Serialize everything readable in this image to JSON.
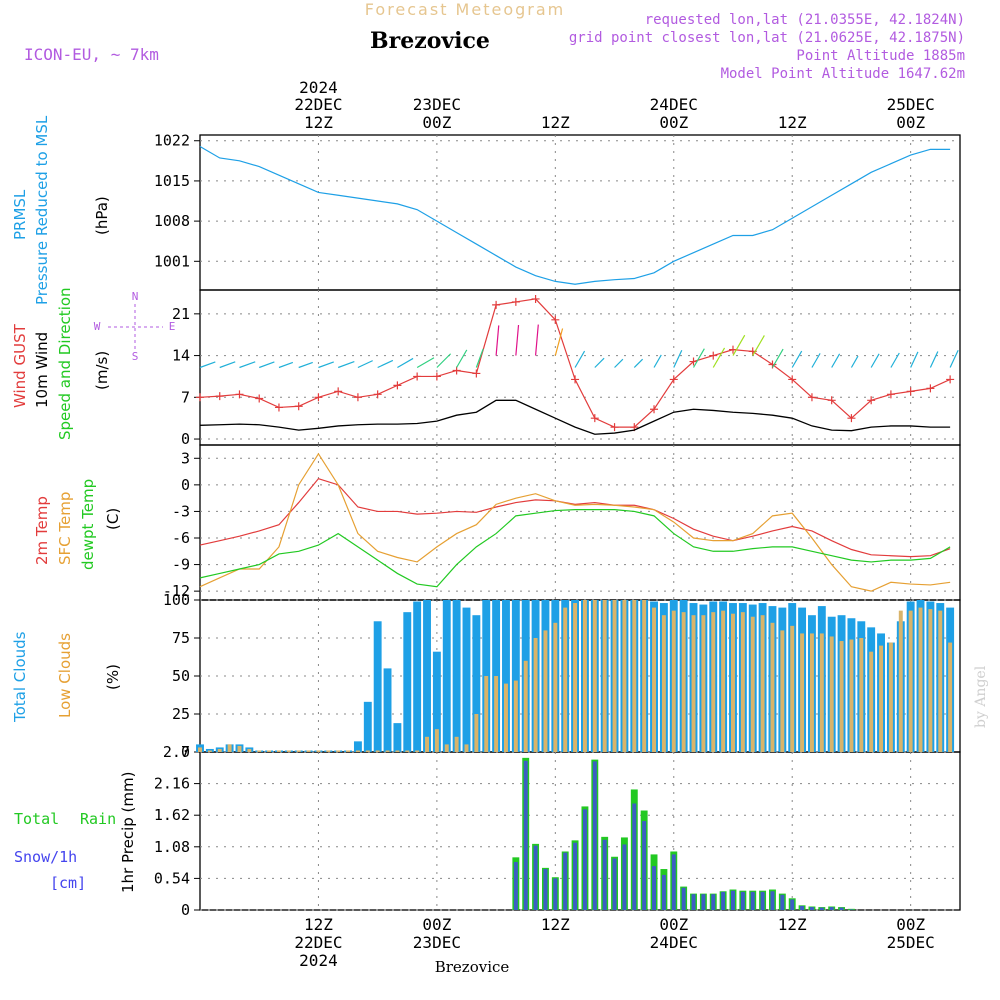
{
  "header": {
    "subtitle": "Forecast Meteogram",
    "station": "Brezovice",
    "model": "ICON-EU, ~ 7km",
    "requested": "requested lon,lat (21.0355E, 42.1824N)",
    "grid": "grid point closest lon,lat (21.0625E, 42.1875N)",
    "point_alt": "Point Altitude 1885m",
    "model_alt": "Model Point Altitude 1647.62m",
    "footer_station": "Brezovice",
    "watermark": "by Angel"
  },
  "time_axis": {
    "year": "2024",
    "labels": [
      {
        "hour": "12Z",
        "day": "22DEC",
        "h": 12
      },
      {
        "hour": "00Z",
        "day": "23DEC",
        "h": 24
      },
      {
        "hour": "12Z",
        "day": "",
        "h": 36
      },
      {
        "hour": "00Z",
        "day": "24DEC",
        "h": 48
      },
      {
        "hour": "12Z",
        "day": "",
        "h": 60
      },
      {
        "hour": "00Z",
        "day": "25DEC",
        "h": 72
      }
    ],
    "range_hours": [
      0,
      77
    ]
  },
  "colors": {
    "pressure": "#1ea0e6",
    "gust": "#e23c3c",
    "wind": "#000000",
    "temp2m": "#e23c3c",
    "sfc": "#e6a033",
    "dewpt": "#22c922",
    "total_clouds": "#1ea0e6",
    "low_clouds": "#d9b46a",
    "rain": "#22c922",
    "snow": "#4444ee",
    "meta": "#b25be0"
  },
  "panels": {
    "pressure": {
      "label1": "PRMSL",
      "label2": "Pressure Reduced to MSL",
      "unit": "(hPa)"
    },
    "wind": {
      "label1": "Wind GUST",
      "label2": "10m Wind",
      "label3": "Speed and Direction",
      "unit": "(m/s)",
      "compass_n": "N",
      "compass_s": "S",
      "compass_w": "W",
      "compass_e": "E"
    },
    "temp": {
      "label1": "2m Temp",
      "label2": "SFC Temp",
      "label3": "dewpt Temp",
      "unit": "(C)"
    },
    "clouds": {
      "label1": "Total Clouds",
      "label2": "Low Clouds",
      "unit": "(%)"
    },
    "precip": {
      "label1": "Total",
      "label1b": "Rain",
      "label2": "Snow/1h",
      "label3": "[cm]",
      "unit": "1hr Precip (mm)"
    }
  },
  "chart_data": [
    {
      "type": "line",
      "name": "PRMSL",
      "ylim": [
        996,
        1023
      ],
      "yticks": [
        "1022",
        "1015",
        "1008",
        "1001"
      ],
      "ytick_values": [
        1022,
        1015,
        1008,
        1001
      ],
      "x": [
        0,
        2,
        4,
        6,
        8,
        10,
        12,
        14,
        16,
        18,
        20,
        22,
        24,
        26,
        28,
        30,
        32,
        34,
        36,
        38,
        40,
        42,
        44,
        46,
        48,
        50,
        52,
        54,
        56,
        58,
        60,
        62,
        64,
        66,
        68,
        70,
        72,
        74,
        76
      ],
      "values": [
        1021,
        1019,
        1018.5,
        1017.5,
        1016,
        1014.5,
        1013,
        1012.5,
        1012,
        1011.5,
        1011,
        1010,
        1008,
        1006,
        1004,
        1002,
        1000,
        998.5,
        997.5,
        997,
        997.5,
        997.8,
        998,
        999,
        1001,
        1002.5,
        1004,
        1005.5,
        1005.5,
        1006.5,
        1008.5,
        1010.5,
        1012.5,
        1014.5,
        1016.5,
        1018,
        1019.5,
        1020.5,
        1020.5
      ]
    },
    {
      "type": "line",
      "name": "Wind GUST / 10m Wind",
      "ylim": [
        -1,
        25
      ],
      "yticks": [
        "21",
        "14",
        "7",
        "0"
      ],
      "ytick_values": [
        21,
        14,
        7,
        0
      ],
      "x": [
        0,
        2,
        4,
        6,
        8,
        10,
        12,
        14,
        16,
        18,
        20,
        22,
        24,
        26,
        28,
        30,
        32,
        34,
        36,
        38,
        40,
        42,
        44,
        46,
        48,
        50,
        52,
        54,
        56,
        58,
        60,
        62,
        64,
        66,
        68,
        70,
        72,
        74,
        76
      ],
      "series": [
        {
          "name": "Wind GUST",
          "values": [
            7,
            7.2,
            7.5,
            6.8,
            5.3,
            5.5,
            7,
            8,
            7,
            7.5,
            9,
            10.5,
            10.5,
            11.5,
            11,
            22.5,
            23,
            23.5,
            20,
            10,
            3.5,
            2,
            2,
            5,
            10,
            13,
            14,
            15,
            14.7,
            12.5,
            10,
            7,
            6.5,
            3.5,
            6.5,
            7.5,
            8,
            8.5,
            10
          ]
        },
        {
          "name": "10m Wind",
          "values": [
            2.3,
            2.4,
            2.5,
            2.4,
            2,
            1.5,
            1.8,
            2.2,
            2.4,
            2.5,
            2.5,
            2.6,
            3,
            4,
            4.5,
            6.5,
            6.5,
            5,
            3.5,
            2,
            0.8,
            1,
            1.5,
            3,
            4.5,
            5,
            4.8,
            4.5,
            4.3,
            4,
            3.5,
            2.2,
            1.5,
            1.4,
            2,
            2.2,
            2.2,
            2,
            2
          ]
        }
      ],
      "direction_deg": [
        70,
        70,
        70,
        70,
        70,
        70,
        70,
        70,
        65,
        65,
        60,
        60,
        45,
        30,
        20,
        5,
        5,
        5,
        15,
        30,
        45,
        45,
        45,
        30,
        25,
        30,
        30,
        30,
        30,
        30,
        30,
        30,
        30,
        30,
        30,
        30,
        25,
        25,
        25
      ]
    },
    {
      "type": "line",
      "name": "Temperatures",
      "ylim": [
        -13,
        4.5
      ],
      "yticks": [
        "3",
        "0",
        "-3",
        "-6",
        "-9",
        "-12"
      ],
      "ytick_values": [
        3,
        0,
        -3,
        -6,
        -9,
        -12
      ],
      "x": [
        0,
        2,
        4,
        6,
        8,
        10,
        12,
        14,
        16,
        18,
        20,
        22,
        24,
        26,
        28,
        30,
        32,
        34,
        36,
        38,
        40,
        42,
        44,
        46,
        48,
        50,
        52,
        54,
        56,
        58,
        60,
        62,
        64,
        66,
        68,
        70,
        72,
        74,
        76
      ],
      "series": [
        {
          "name": "2m Temp",
          "values": [
            -6.8,
            -6.3,
            -5.8,
            -5.2,
            -4.5,
            -2,
            0.7,
            0,
            -2.5,
            -3,
            -3,
            -3.3,
            -3.2,
            -3,
            -3.1,
            -2.5,
            -2,
            -1.7,
            -1.8,
            -2.2,
            -2,
            -2.3,
            -2.3,
            -2.8,
            -3.8,
            -5,
            -5.8,
            -6.3,
            -5.8,
            -5.2,
            -4.7,
            -5.2,
            -6.3,
            -7.3,
            -7.9,
            -8,
            -8.1,
            -8,
            -7.2
          ]
        },
        {
          "name": "SFC Temp",
          "values": [
            -11.5,
            -10.5,
            -9.5,
            -9.5,
            -7,
            0,
            3.5,
            0,
            -5.5,
            -7.5,
            -8.2,
            -8.7,
            -7,
            -5.5,
            -4.5,
            -2.2,
            -1.5,
            -1,
            -1.8,
            -2.3,
            -2.2,
            -2.3,
            -2.5,
            -2.8,
            -4.2,
            -6,
            -6.3,
            -6.3,
            -5.5,
            -3.5,
            -3.2,
            -6,
            -9,
            -11.5,
            -12,
            -11,
            -11.2,
            -11.3,
            -11
          ]
        },
        {
          "name": "dewpt Temp",
          "values": [
            -10.5,
            -10,
            -9.5,
            -9,
            -7.8,
            -7.5,
            -6.8,
            -5.5,
            -7,
            -8.5,
            -10,
            -11.2,
            -11.5,
            -9,
            -7,
            -5.5,
            -3.5,
            -3.2,
            -2.9,
            -2.8,
            -2.8,
            -2.8,
            -3,
            -3.5,
            -5.5,
            -7,
            -7.5,
            -7.5,
            -7.2,
            -7,
            -7,
            -7.5,
            -8,
            -8.5,
            -8.7,
            -8.5,
            -8.5,
            -8.3,
            -7
          ]
        }
      ]
    },
    {
      "type": "bar",
      "name": "Clouds",
      "ylim": [
        0,
        100
      ],
      "yticks": [
        "100",
        "75",
        "50",
        "25",
        "0"
      ],
      "ytick_values": [
        100,
        75,
        50,
        25,
        0
      ],
      "x": [
        0,
        1,
        2,
        3,
        4,
        5,
        6,
        7,
        8,
        9,
        10,
        11,
        12,
        13,
        14,
        15,
        16,
        17,
        18,
        19,
        20,
        21,
        22,
        23,
        24,
        25,
        26,
        27,
        28,
        29,
        30,
        31,
        32,
        33,
        34,
        35,
        36,
        37,
        38,
        39,
        40,
        41,
        42,
        43,
        44,
        45,
        46,
        47,
        48,
        49,
        50,
        51,
        52,
        53,
        54,
        55,
        56,
        57,
        58,
        59,
        60,
        61,
        62,
        63,
        64,
        65,
        66,
        67,
        68,
        69,
        70,
        71,
        72,
        73,
        74,
        75,
        76
      ],
      "series": [
        {
          "name": "Total Clouds",
          "values": [
            5,
            2,
            3,
            5,
            5,
            3,
            1,
            1,
            1,
            1,
            1,
            1,
            1,
            1,
            1,
            1,
            7,
            33,
            86,
            55,
            19,
            92,
            99,
            100,
            66,
            100,
            100,
            95,
            90,
            100,
            100,
            100,
            100,
            100,
            100,
            100,
            100,
            100,
            100,
            100,
            100,
            100,
            100,
            100,
            100,
            100,
            99,
            98,
            100,
            100,
            98,
            97,
            99,
            99,
            98,
            98,
            97,
            98,
            96,
            95,
            98,
            95,
            90,
            96,
            89,
            90,
            88,
            86,
            82,
            78,
            72,
            86,
            99,
            100,
            99,
            98,
            95
          ]
        },
        {
          "name": "Low Clouds",
          "values": [
            3,
            1,
            2,
            5,
            4,
            2,
            1,
            1,
            1,
            1,
            1,
            1,
            1,
            1,
            1,
            1,
            1,
            1,
            1,
            1,
            1,
            1,
            1,
            10,
            15,
            5,
            10,
            5,
            25,
            50,
            50,
            45,
            47,
            60,
            75,
            80,
            85,
            95,
            98,
            100,
            100,
            100,
            100,
            100,
            100,
            100,
            95,
            90,
            93,
            92,
            90,
            90,
            92,
            93,
            91,
            92,
            89,
            90,
            85,
            80,
            83,
            78,
            78,
            78,
            76,
            73,
            74,
            75,
            66,
            70,
            72,
            93,
            93,
            95,
            94,
            93,
            72
          ]
        }
      ]
    },
    {
      "type": "bar",
      "name": "1hr Precip",
      "ylim": [
        0,
        2.7
      ],
      "yticks": [
        "2.7",
        "2.16",
        "1.62",
        "1.08",
        "0.54",
        "0"
      ],
      "ytick_values": [
        2.7,
        2.16,
        1.62,
        1.08,
        0.54,
        0
      ],
      "x": [
        32,
        33,
        34,
        35,
        36,
        37,
        38,
        39,
        40,
        41,
        42,
        43,
        44,
        45,
        46,
        47,
        48,
        49,
        50,
        51,
        52,
        53,
        54,
        55,
        56,
        57,
        58,
        59,
        60,
        61,
        62,
        63,
        64,
        65,
        66
      ],
      "series": [
        {
          "name": "Total Rain",
          "values": [
            0.9,
            2.6,
            1.13,
            0.72,
            0.56,
            1.0,
            1.19,
            1.77,
            2.57,
            1.25,
            0.91,
            1.24,
            2.06,
            1.7,
            0.95,
            0.7,
            1.0,
            0.4,
            0.28,
            0.28,
            0.28,
            0.32,
            0.35,
            0.33,
            0.33,
            0.33,
            0.35,
            0.28,
            0.2,
            0.08,
            0.06,
            0.05,
            0.06,
            0.05,
            0.02
          ]
        },
        {
          "name": "Snow/1h",
          "values": [
            0.82,
            2.55,
            1.1,
            0.7,
            0.54,
            0.98,
            1.15,
            1.72,
            2.54,
            1.2,
            0.88,
            1.12,
            1.82,
            1.52,
            0.75,
            0.6,
            0.95,
            0.38,
            0.27,
            0.27,
            0.27,
            0.31,
            0.33,
            0.31,
            0.31,
            0.31,
            0.32,
            0.26,
            0.18,
            0.07,
            0.05,
            0.04,
            0.05,
            0.04,
            0.01
          ]
        }
      ]
    }
  ]
}
